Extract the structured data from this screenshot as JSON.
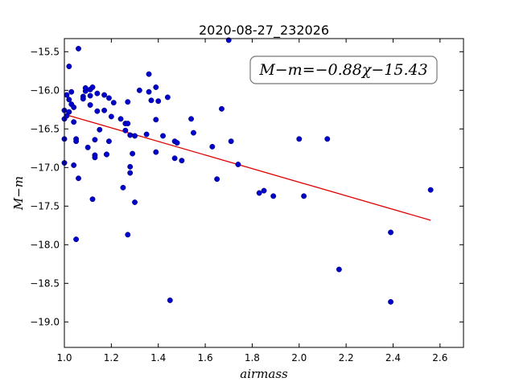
{
  "chart_data": {
    "type": "scatter",
    "title": "2020-08-27_232026",
    "xlabel": "airmass",
    "ylabel": "M−m",
    "xlim": [
      1.0,
      2.7
    ],
    "ylim": [
      -19.33,
      -15.33
    ],
    "y_inverted": true,
    "grid": false,
    "annotation": "M−m=−0.88χ−15.43",
    "annotation_position": "top-right",
    "xticks": [
      1.0,
      1.2,
      1.4,
      1.6,
      1.8,
      2.0,
      2.2,
      2.4,
      2.6
    ],
    "xtick_labels": [
      "1.0",
      "1.2",
      "1.4",
      "1.6",
      "1.8",
      "2.0",
      "2.2",
      "2.4",
      "2.6"
    ],
    "yticks": [
      -15.5,
      -16.0,
      -16.5,
      -17.0,
      -17.5,
      -18.0,
      -18.5,
      -19.0
    ],
    "ytick_labels": [
      "−15.5",
      "−16.0",
      "−16.5",
      "−17.0",
      "−17.5",
      "−18.0",
      "−18.5",
      "−19.0"
    ],
    "point_color": "#0000cc",
    "fit_color": "#e00000",
    "fit": {
      "slope": -0.88,
      "intercept": -15.43,
      "x_range": [
        1.0,
        2.56
      ]
    },
    "points": [
      [
        1.0,
        -16.26
      ],
      [
        1.0,
        -16.37
      ],
      [
        1.0,
        -16.63
      ],
      [
        1.0,
        -16.94
      ],
      [
        1.01,
        -16.33
      ],
      [
        1.01,
        -16.06
      ],
      [
        1.02,
        -16.28
      ],
      [
        1.02,
        -16.12
      ],
      [
        1.02,
        -15.69
      ],
      [
        1.03,
        -16.02
      ],
      [
        1.03,
        -16.18
      ],
      [
        1.04,
        -16.41
      ],
      [
        1.04,
        -16.22
      ],
      [
        1.04,
        -16.97
      ],
      [
        1.05,
        -16.63
      ],
      [
        1.05,
        -16.66
      ],
      [
        1.06,
        -15.46
      ],
      [
        1.06,
        -17.14
      ],
      [
        1.05,
        -17.93
      ],
      [
        1.08,
        -16.08
      ],
      [
        1.08,
        -16.11
      ],
      [
        1.09,
        -16.01
      ],
      [
        1.09,
        -15.97
      ],
      [
        1.1,
        -16.74
      ],
      [
        1.11,
        -15.99
      ],
      [
        1.11,
        -16.19
      ],
      [
        1.11,
        -16.07
      ],
      [
        1.12,
        -17.41
      ],
      [
        1.12,
        -15.96
      ],
      [
        1.13,
        -16.64
      ],
      [
        1.13,
        -16.84
      ],
      [
        1.13,
        -16.87
      ],
      [
        1.14,
        -16.27
      ],
      [
        1.14,
        -16.04
      ],
      [
        1.15,
        -16.51
      ],
      [
        1.17,
        -16.06
      ],
      [
        1.17,
        -16.26
      ],
      [
        1.18,
        -16.83
      ],
      [
        1.18,
        -16.83
      ],
      [
        1.19,
        -16.66
      ],
      [
        1.19,
        -16.1
      ],
      [
        1.2,
        -16.34
      ],
      [
        1.21,
        -16.16
      ],
      [
        1.24,
        -16.37
      ],
      [
        1.25,
        -17.26
      ],
      [
        1.26,
        -16.52
      ],
      [
        1.26,
        -16.43
      ],
      [
        1.27,
        -16.43
      ],
      [
        1.27,
        -16.15
      ],
      [
        1.27,
        -17.87
      ],
      [
        1.28,
        -16.58
      ],
      [
        1.28,
        -16.99
      ],
      [
        1.28,
        -17.07
      ],
      [
        1.29,
        -16.82
      ],
      [
        1.3,
        -16.59
      ],
      [
        1.3,
        -17.45
      ],
      [
        1.32,
        -16.0
      ],
      [
        1.35,
        -16.57
      ],
      [
        1.36,
        -15.79
      ],
      [
        1.36,
        -16.02
      ],
      [
        1.37,
        -16.13
      ],
      [
        1.39,
        -15.96
      ],
      [
        1.39,
        -16.38
      ],
      [
        1.39,
        -16.8
      ],
      [
        1.4,
        -16.14
      ],
      [
        1.42,
        -16.59
      ],
      [
        1.44,
        -16.09
      ],
      [
        1.45,
        -18.72
      ],
      [
        1.47,
        -16.66
      ],
      [
        1.47,
        -16.88
      ],
      [
        1.48,
        -16.68
      ],
      [
        1.5,
        -16.91
      ],
      [
        1.54,
        -16.37
      ],
      [
        1.55,
        -16.55
      ],
      [
        1.63,
        -16.73
      ],
      [
        1.65,
        -17.15
      ],
      [
        1.67,
        -16.24
      ],
      [
        1.7,
        -15.35
      ],
      [
        1.71,
        -16.66
      ],
      [
        1.74,
        -16.96
      ],
      [
        1.83,
        -17.33
      ],
      [
        1.85,
        -17.3
      ],
      [
        1.89,
        -17.37
      ],
      [
        2.0,
        -16.63
      ],
      [
        2.02,
        -17.37
      ],
      [
        2.12,
        -16.63
      ],
      [
        2.17,
        -18.32
      ],
      [
        2.39,
        -17.84
      ],
      [
        2.39,
        -18.74
      ],
      [
        2.56,
        -17.29
      ]
    ]
  }
}
